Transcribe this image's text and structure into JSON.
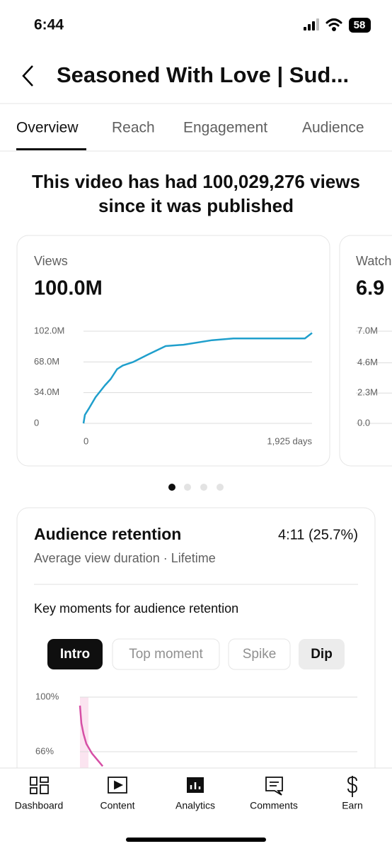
{
  "status_bar": {
    "time": "6:44",
    "battery": "58"
  },
  "header": {
    "title": "Seasoned With Love | Sud..."
  },
  "tabs": [
    "Overview",
    "Reach",
    "Engagement",
    "Audience"
  ],
  "headline": [
    "This video has had 100,029,276 views",
    "since it was published"
  ],
  "retention_card": {
    "title": "Audience retention",
    "value": "4:11 (25.7%)",
    "subtitle": "Average view duration · Lifetime",
    "prompt": "Key moments for audience retention",
    "chips": [
      "Intro",
      "Top moment",
      "Spike",
      "Dip"
    ]
  },
  "nav": [
    "Dashboard",
    "Content",
    "Analytics",
    "Comments",
    "Earn"
  ],
  "chart_data": [
    {
      "type": "line",
      "title": "Views",
      "total": "100.0M",
      "color": "#1f9fcc",
      "grid": true,
      "x": [
        0,
        12,
        48,
        102,
        180,
        229,
        283,
        331,
        421,
        541,
        692,
        842,
        1083,
        1263,
        1865,
        1925
      ],
      "values": [
        0,
        9400000,
        17000000,
        29000000,
        42000000,
        49000000,
        60000000,
        64000000,
        68000000,
        76000000,
        85500000,
        87000000,
        92000000,
        94000000,
        94000000,
        100000000
      ],
      "xlim": [
        0,
        1925
      ],
      "xticks": [
        0,
        {
          "value": 1925,
          "label": "1,925 days"
        }
      ],
      "ylim": [
        0,
        102000000
      ],
      "yticks": [
        0,
        {
          "value": 34000000,
          "label": "34.0M"
        },
        {
          "value": 68000000,
          "label": "68.0M"
        },
        {
          "value": 102000000,
          "label": "102.0M"
        }
      ]
    },
    {
      "type": "line",
      "title": "Watch",
      "total": "6.9",
      "grid": true,
      "ylim": [
        0,
        7000000
      ],
      "yticks": [
        {
          "value": 0,
          "label": "0.0"
        },
        {
          "value": 2300000,
          "label": "2.3M"
        },
        {
          "value": 4600000,
          "label": "4.6M"
        },
        {
          "value": 7000000,
          "label": "7.0M"
        }
      ]
    },
    {
      "type": "line",
      "color": "#d64fa5",
      "grid": true,
      "x": [
        0,
        0.5,
        1.3,
        2.3,
        4.3,
        8.2
      ],
      "values": [
        94.7,
        83.7,
        77,
        71,
        65,
        57
      ],
      "xlim": [
        0,
        100
      ],
      "ylim": [
        0,
        100
      ],
      "yticks": [
        {
          "value": 100,
          "label": "100%"
        },
        {
          "value": 66,
          "label": "66%"
        }
      ]
    }
  ]
}
